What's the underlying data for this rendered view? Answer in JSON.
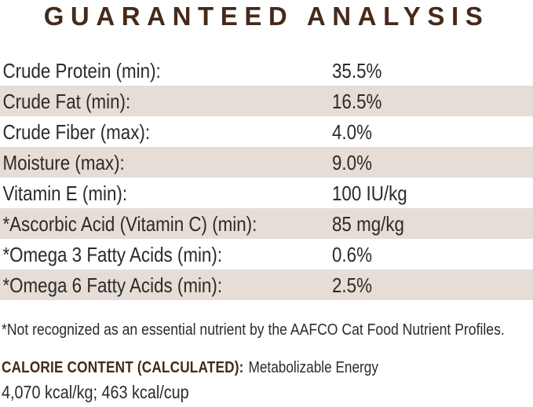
{
  "colors": {
    "brand_brown": "#452a1b",
    "row_stripe": "#e5ddd6",
    "body_text": "#2d2a28"
  },
  "title": "GUARANTEED ANALYSIS",
  "analysis_table": {
    "rows": [
      {
        "label": "Crude Protein (min):",
        "value": "35.5%"
      },
      {
        "label": "Crude Fat (min):",
        "value": "16.5%"
      },
      {
        "label": "Crude Fiber (max):",
        "value": "4.0%"
      },
      {
        "label": "Moisture (max):",
        "value": "9.0%"
      },
      {
        "label": "Vitamin E (min):",
        "value": "100 IU/kg"
      },
      {
        "label": "*Ascorbic Acid (Vitamin C) (min):",
        "value": "85 mg/kg"
      },
      {
        "label": "*Omega 3 Fatty Acids (min):",
        "value": "0.6%"
      },
      {
        "label": "*Omega 6 Fatty Acids (min):",
        "value": "2.5%"
      }
    ]
  },
  "footnote": "*Not recognized as an essential nutrient by the AAFCO Cat Food Nutrient Profiles.",
  "calorie_content": {
    "heading": "CALORIE CONTENT (CALCULATED):",
    "subtitle": "Metabolizable Energy",
    "values_line": "4,070 kcal/kg; 463 kcal/cup"
  }
}
